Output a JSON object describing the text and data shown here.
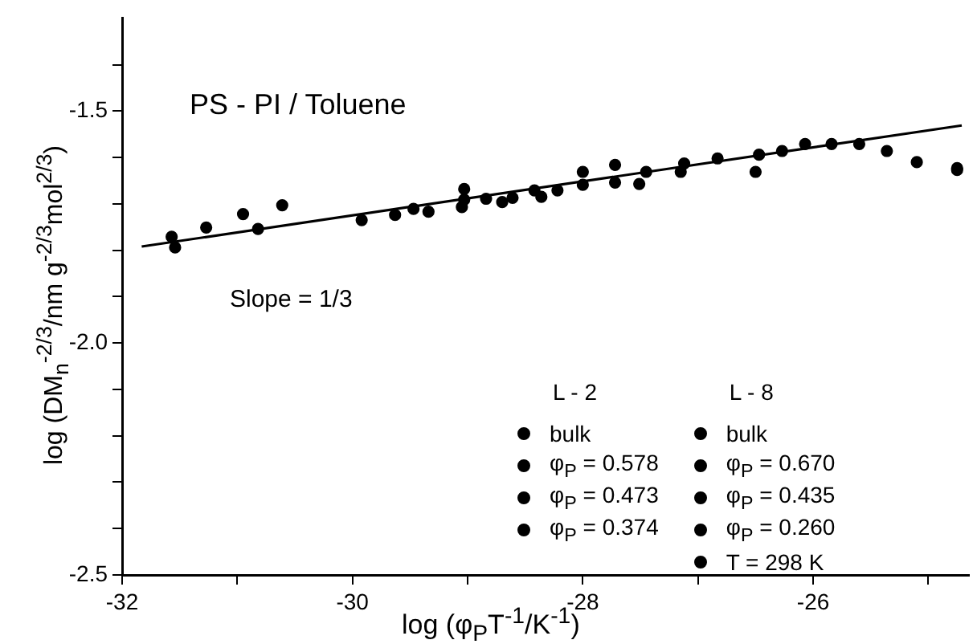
{
  "chart_data": {
    "type": "scatter",
    "title": "PS - PI / Toluene",
    "xlabel": "log (φ$_{P}$T$^{-1}$/K$^{-1}$)",
    "ylabel": "log (DM$_{n}$$^{-2/3}$/nm g$^{-2/3}$mol$^{2/3}$)",
    "annotations": [
      "Slope = 1/3",
      "L - 2",
      "L - 8"
    ],
    "xlim": [
      -32,
      -24.65
    ],
    "xticks": [
      -32,
      {
        "value": -31,
        "label": null
      },
      -30,
      {
        "value": -29,
        "label": null
      },
      -28,
      {
        "value": -27,
        "label": null
      },
      -26,
      {
        "value": -25,
        "label": null
      }
    ],
    "ylim": [
      -2.5,
      -1.3
    ],
    "yticks": [
      {
        "value": -2.5,
        "label": "-2.5"
      },
      {
        "value": -2.4,
        "label": null
      },
      {
        "value": -2.3,
        "label": null
      },
      {
        "value": -2.2,
        "label": null
      },
      {
        "value": -2.1,
        "label": null
      },
      {
        "value": -2.0,
        "label": "-2.0"
      },
      {
        "value": -1.9,
        "label": null
      },
      {
        "value": -1.8,
        "label": null
      },
      {
        "value": -1.7,
        "label": null
      },
      {
        "value": -1.6,
        "label": null
      },
      {
        "value": -1.5,
        "label": "-1.5"
      },
      {
        "value": -1.4,
        "label": null
      }
    ],
    "grid": false,
    "legend": "bottom right",
    "marker": "circle",
    "series": [
      {
        "name": "bulk",
        "color": "#000000",
        "x": [
          -26.47,
          -26.27,
          -26.07,
          -25.84,
          -25.6,
          -25.36,
          -25.1,
          -24.75
        ],
        "values": [
          -1.594,
          -1.586,
          -1.571,
          -1.571,
          -1.571,
          -1.586,
          -1.61,
          -1.623
        ]
      },
      {
        "name": "φ$_{P}$ = 0.578",
        "color": "#000000",
        "x": [
          -29.03,
          -28.42,
          -27.12
        ],
        "values": [
          -1.668,
          -1.671,
          -1.613
        ]
      },
      {
        "name": "φ$_{P}$ = 0.473",
        "color": "#000000",
        "x": [
          -29.03,
          -28.84,
          -28.22
        ],
        "values": [
          -1.691,
          -1.689,
          -1.671
        ]
      },
      {
        "name": "φ$_{P}$ = 0.374",
        "color": "#000000",
        "x": [
          -28.0,
          -27.72
        ],
        "values": [
          -1.659,
          -1.654
        ]
      },
      {
        "name": "bulk",
        "color": "#000000",
        "x": [
          -27.15,
          -26.83,
          -24.75
        ],
        "values": [
          -1.631,
          -1.602,
          -1.627
        ]
      },
      {
        "name": "φ$_{P}$ = 0.670",
        "color": "#000000",
        "x": [
          -28.0,
          -27.72,
          -27.45
        ],
        "values": [
          -1.631,
          -1.616,
          -1.631
        ]
      },
      {
        "name": "φ$_{P}$ = 0.435",
        "color": "#000000",
        "x": [
          -28.7,
          -28.61,
          -28.36
        ],
        "values": [
          -1.696,
          -1.687,
          -1.685
        ]
      },
      {
        "name": "φ$_{P}$ = 0.260",
        "color": "#000000",
        "x": [
          -27.51,
          -26.5
        ],
        "values": [
          -1.657,
          -1.631
        ]
      },
      {
        "name": "T = 298 K",
        "color": "#000000",
        "x": [
          -31.57,
          -31.54,
          -31.27,
          -30.95,
          -30.82,
          -30.61,
          -29.92,
          -29.63,
          -29.47,
          -29.34,
          -29.05
        ],
        "values": [
          -1.771,
          -1.794,
          -1.751,
          -1.722,
          -1.754,
          -1.703,
          -1.735,
          -1.724,
          -1.711,
          -1.717,
          -1.707
        ]
      },
      {
        "type": "line",
        "color": "#000000",
        "line_style": "solid",
        "marker": "none",
        "x": [
          -31.83,
          -24.71
        ],
        "values": [
          -1.792,
          -1.531
        ]
      }
    ]
  }
}
